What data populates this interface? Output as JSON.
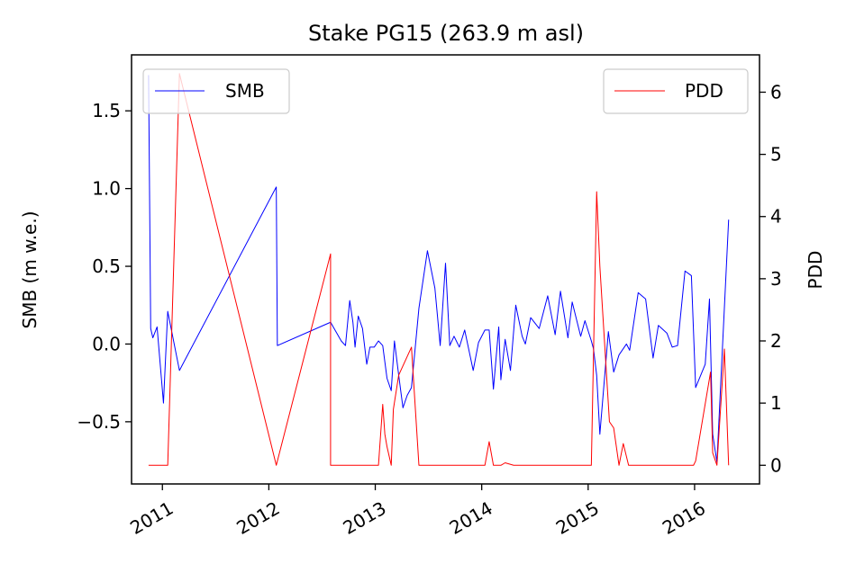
{
  "chart_data": {
    "type": "line",
    "title": "Stake PG15 (263.9 m asl)",
    "xlabel": "",
    "ylabel_left": "SMB (m w.e.)",
    "ylabel_right": "PDD",
    "x_ticks": [
      "2011",
      "2012",
      "2013",
      "2014",
      "2015",
      "2016"
    ],
    "y_left_ticks": [
      "−0.5",
      "0.0",
      "0.5",
      "1.0",
      "1.5"
    ],
    "y_right_ticks": [
      "0",
      "1",
      "2",
      "3",
      "4",
      "5",
      "6"
    ],
    "xlim": [
      2010.71,
      2016.61
    ],
    "ylim_left": [
      -0.9,
      1.86
    ],
    "ylim_right": [
      -0.3,
      6.6
    ],
    "legend_left_position": "upper-left",
    "legend_right_position": "upper-right",
    "series": [
      {
        "name": "SMB",
        "axis": "left",
        "color": "#0000ff",
        "x": [
          2010.87,
          2010.89,
          2010.91,
          2010.95,
          2011.01,
          2011.05,
          2011.16,
          2012.07,
          2012.08,
          2012.58,
          2012.68,
          2012.72,
          2012.76,
          2012.79,
          2012.81,
          2012.84,
          2012.88,
          2012.92,
          2012.95,
          2012.99,
          2013.03,
          2013.07,
          2013.11,
          2013.15,
          2013.18,
          2013.22,
          2013.26,
          2013.3,
          2013.34,
          2013.41,
          2013.49,
          2013.56,
          2013.61,
          2013.66,
          2013.7,
          2013.74,
          2013.79,
          2013.84,
          2013.92,
          2013.97,
          2014.03,
          2014.07,
          2014.11,
          2014.16,
          2014.18,
          2014.22,
          2014.27,
          2014.32,
          2014.38,
          2014.41,
          2014.46,
          2014.54,
          2014.62,
          2014.69,
          2014.74,
          2014.81,
          2014.85,
          2014.93,
          2014.97,
          2015.03,
          2015.05,
          2015.08,
          2015.11,
          2015.19,
          2015.24,
          2015.29,
          2015.36,
          2015.39,
          2015.47,
          2015.54,
          2015.61,
          2015.66,
          2015.74,
          2015.79,
          2015.84,
          2015.91,
          2015.97,
          2016.01,
          2016.1,
          2016.14,
          2016.17,
          2016.21,
          2016.26,
          2016.32
        ],
        "y": [
          1.73,
          0.1,
          0.04,
          0.11,
          -0.38,
          0.21,
          -0.17,
          1.01,
          -0.01,
          0.14,
          0.02,
          -0.01,
          0.28,
          0.14,
          -0.02,
          0.18,
          0.1,
          -0.13,
          -0.02,
          -0.02,
          0.02,
          -0.01,
          -0.22,
          -0.3,
          0.02,
          -0.2,
          -0.41,
          -0.33,
          -0.28,
          0.23,
          0.6,
          0.36,
          -0.01,
          0.52,
          -0.01,
          0.05,
          -0.02,
          0.09,
          -0.17,
          0.01,
          0.09,
          0.09,
          -0.29,
          0.11,
          -0.23,
          0.03,
          -0.17,
          0.25,
          0.05,
          0.0,
          0.17,
          0.1,
          0.31,
          0.06,
          0.34,
          0.04,
          0.27,
          0.05,
          0.15,
          0.02,
          -0.03,
          -0.2,
          -0.58,
          0.08,
          -0.18,
          -0.07,
          0.0,
          -0.04,
          0.33,
          0.29,
          -0.09,
          0.12,
          0.07,
          -0.02,
          -0.01,
          0.47,
          0.44,
          -0.28,
          -0.13,
          0.29,
          -0.58,
          -0.76,
          -0.05,
          0.8
        ]
      },
      {
        "name": "PDD",
        "axis": "right",
        "color": "#ff0000",
        "x": [
          2010.87,
          2011.05,
          2011.16,
          2012.07,
          2012.58,
          2012.58,
          2013.03,
          2013.07,
          2013.09,
          2013.11,
          2013.15,
          2013.17,
          2013.22,
          2013.34,
          2013.41,
          2014.03,
          2014.07,
          2014.11,
          2014.18,
          2014.22,
          2014.3,
          2014.98,
          2015.03,
          2015.08,
          2015.11,
          2015.2,
          2015.24,
          2015.29,
          2015.33,
          2015.38,
          2015.95,
          2015.99,
          2016.01,
          2016.15,
          2016.17,
          2016.21,
          2016.28,
          2016.32
        ],
        "y": [
          0.0,
          0.0,
          6.3,
          0.0,
          3.4,
          0.0,
          0.0,
          0.98,
          0.5,
          0.3,
          0.0,
          0.9,
          1.45,
          1.9,
          0.0,
          0.0,
          0.38,
          0.0,
          0.0,
          0.04,
          0.0,
          0.0,
          0.0,
          4.4,
          3.2,
          0.7,
          0.6,
          0.0,
          0.35,
          0.0,
          0.0,
          0.0,
          0.07,
          1.5,
          0.2,
          0.0,
          1.87,
          0.0
        ]
      }
    ]
  }
}
